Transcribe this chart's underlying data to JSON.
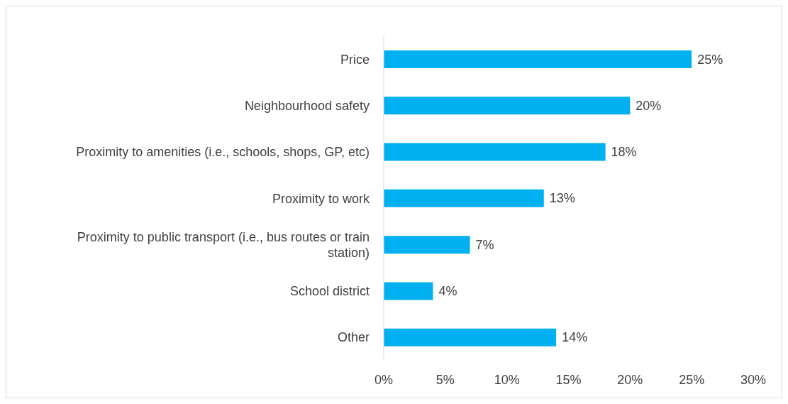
{
  "chart_data": {
    "type": "bar",
    "orientation": "horizontal",
    "categories": [
      "Price",
      "Neighbourhood safety",
      "Proximity to amenities (i.e., schools, shops, GP, etc)",
      "Proximity to work",
      "Proximity to public transport (i.e., bus routes or train station)",
      "School district",
      "Other"
    ],
    "values": [
      25,
      20,
      18,
      13,
      7,
      4,
      14
    ],
    "value_labels": [
      "25%",
      "20%",
      "18%",
      "13%",
      "7%",
      "4%",
      "14%"
    ],
    "color": "#00b0f0",
    "xlim": [
      0,
      30
    ],
    "xticks": [
      {
        "value": 0,
        "label": "0%"
      },
      {
        "value": 5,
        "label": "5%"
      },
      {
        "value": 10,
        "label": "10%"
      },
      {
        "value": 15,
        "label": "15%"
      },
      {
        "value": 20,
        "label": "20%"
      },
      {
        "value": 25,
        "label": "25%"
      },
      {
        "value": 30,
        "label": "30%"
      }
    ],
    "grid": false,
    "legend": false
  }
}
